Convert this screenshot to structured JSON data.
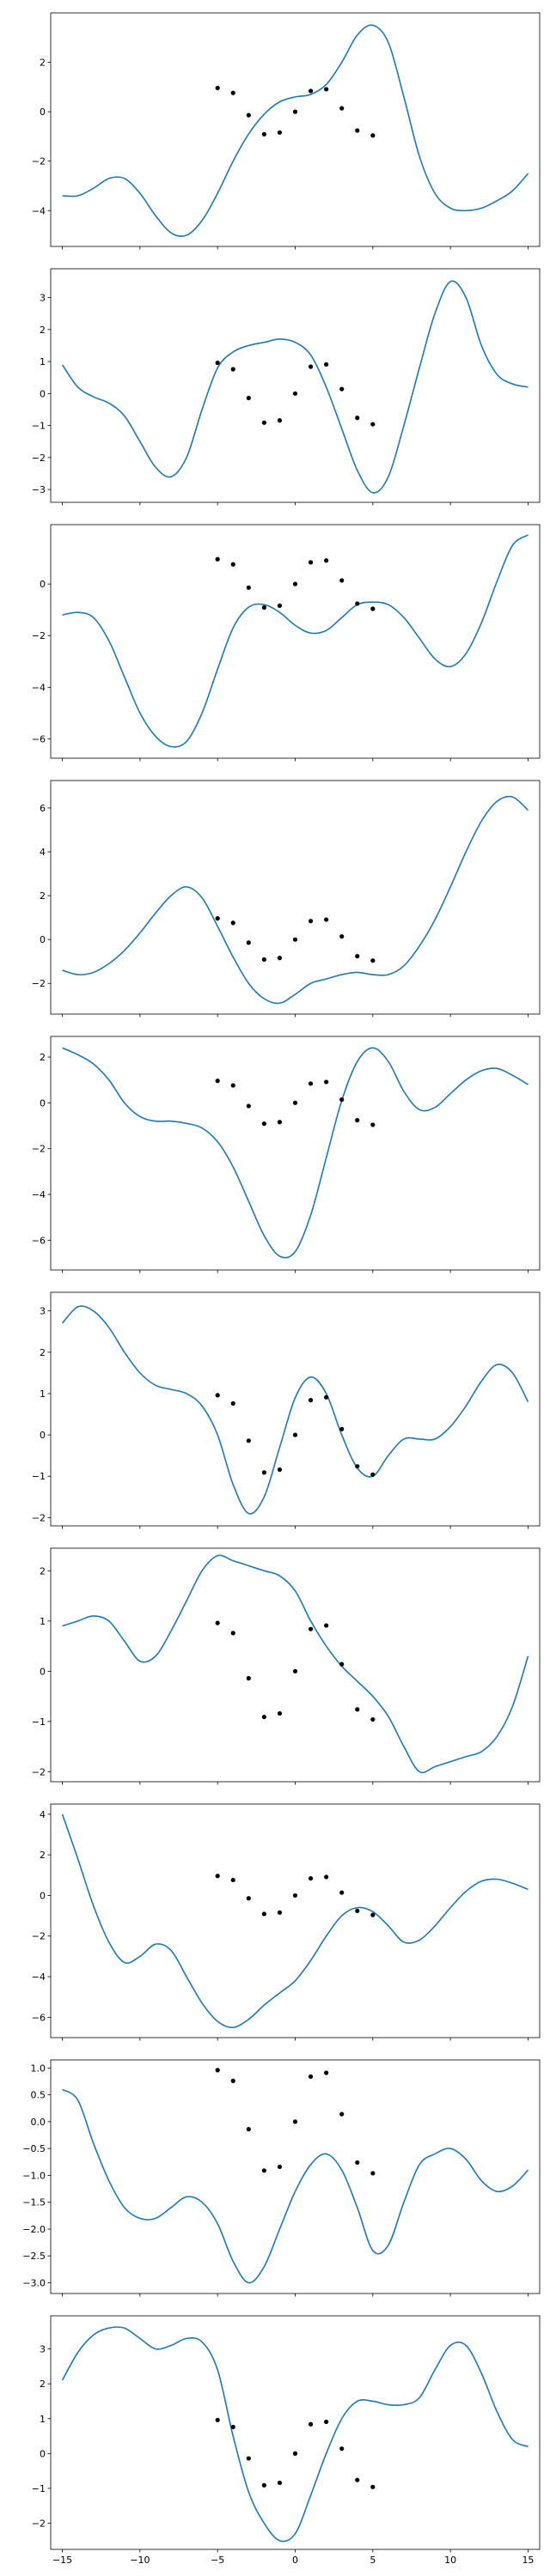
{
  "figure": {
    "x_ticks": [
      "−15",
      "−10",
      "−5",
      "0",
      "5",
      "10",
      "15"
    ],
    "line_color": "#1f77b4",
    "point_color": "#000000"
  },
  "chart_data": [
    {
      "type": "line",
      "xlim": [
        -15.75,
        15.75
      ],
      "ylim": [
        -5.45,
        4.0
      ],
      "yticks": [
        -4,
        -2,
        0,
        2
      ],
      "ytick_labels": [
        "−4",
        "−2",
        "0",
        "2"
      ],
      "series": [
        {
          "x": [
            -15,
            -14,
            -13,
            -12,
            -11,
            -10,
            -9,
            -8,
            -7,
            -6,
            -5,
            -4,
            -3,
            -2,
            -1,
            0,
            1,
            2,
            3,
            4,
            5,
            6,
            7,
            8,
            9,
            10,
            11,
            12,
            13,
            14,
            15
          ],
          "y": [
            -3.4,
            -3.4,
            -3.1,
            -2.7,
            -2.7,
            -3.3,
            -4.2,
            -4.9,
            -5.0,
            -4.4,
            -3.3,
            -2.0,
            -0.9,
            -0.1,
            0.4,
            0.6,
            0.7,
            1.1,
            2.0,
            3.1,
            3.5,
            2.8,
            0.6,
            -1.8,
            -3.3,
            -3.9,
            -4.0,
            -3.9,
            -3.6,
            -3.2,
            -2.5
          ]
        }
      ]
    },
    {
      "type": "line",
      "xlim": [
        -15.75,
        15.75
      ],
      "ylim": [
        -3.4,
        3.9
      ],
      "yticks": [
        -3,
        -2,
        -1,
        0,
        1,
        2,
        3
      ],
      "ytick_labels": [
        "−3",
        "−2",
        "−1",
        "0",
        "1",
        "2",
        "3"
      ],
      "series": [
        {
          "x": [
            -15,
            -14,
            -13,
            -12,
            -11,
            -10,
            -9,
            -8,
            -7,
            -6,
            -5,
            -4,
            -3,
            -2,
            -1,
            0,
            1,
            2,
            3,
            4,
            5,
            6,
            7,
            8,
            9,
            10,
            11,
            12,
            13,
            14,
            15
          ],
          "y": [
            0.9,
            0.2,
            -0.1,
            -0.3,
            -0.7,
            -1.5,
            -2.3,
            -2.6,
            -2.0,
            -0.5,
            0.8,
            1.3,
            1.5,
            1.6,
            1.7,
            1.6,
            1.2,
            0.2,
            -1.1,
            -2.4,
            -3.1,
            -2.6,
            -1.0,
            0.8,
            2.5,
            3.5,
            3.0,
            1.5,
            0.6,
            0.3,
            0.2
          ]
        }
      ]
    },
    {
      "type": "line",
      "xlim": [
        -15.75,
        15.75
      ],
      "ylim": [
        -6.75,
        2.3
      ],
      "yticks": [
        -6,
        -4,
        -2,
        0
      ],
      "ytick_labels": [
        "−6",
        "−4",
        "−2",
        "0"
      ],
      "series": [
        {
          "x": [
            -15,
            -14,
            -13,
            -12,
            -11,
            -10,
            -9,
            -8,
            -7,
            -6,
            -5,
            -4,
            -3,
            -2,
            -1,
            0,
            1,
            2,
            3,
            4,
            5,
            6,
            7,
            8,
            9,
            10,
            11,
            12,
            13,
            14,
            15
          ],
          "y": [
            -1.2,
            -1.1,
            -1.3,
            -2.2,
            -3.6,
            -5.0,
            -5.9,
            -6.3,
            -6.1,
            -5.0,
            -3.3,
            -1.7,
            -0.9,
            -0.8,
            -1.1,
            -1.6,
            -1.9,
            -1.8,
            -1.3,
            -0.8,
            -0.7,
            -0.8,
            -1.3,
            -2.1,
            -2.9,
            -3.2,
            -2.7,
            -1.5,
            0.1,
            1.5,
            1.9
          ]
        }
      ]
    },
    {
      "type": "line",
      "xlim": [
        -15.75,
        15.75
      ],
      "ylim": [
        -3.4,
        7.25
      ],
      "yticks": [
        -2,
        0,
        2,
        4,
        6
      ],
      "ytick_labels": [
        "−2",
        "0",
        "2",
        "4",
        "6"
      ],
      "series": [
        {
          "x": [
            -15,
            -14,
            -13,
            -12,
            -11,
            -10,
            -9,
            -8,
            -7,
            -6,
            -5,
            -4,
            -3,
            -2,
            -1,
            0,
            1,
            2,
            3,
            4,
            5,
            6,
            7,
            8,
            9,
            10,
            11,
            12,
            13,
            14,
            15
          ],
          "y": [
            -1.4,
            -1.6,
            -1.5,
            -1.1,
            -0.5,
            0.3,
            1.2,
            2.0,
            2.4,
            1.9,
            0.6,
            -0.8,
            -2.0,
            -2.7,
            -2.9,
            -2.5,
            -2.0,
            -1.8,
            -1.6,
            -1.5,
            -1.6,
            -1.6,
            -1.2,
            -0.3,
            0.9,
            2.4,
            4.0,
            5.4,
            6.3,
            6.5,
            5.9
          ]
        }
      ]
    },
    {
      "type": "line",
      "xlim": [
        -15.75,
        15.75
      ],
      "ylim": [
        -7.3,
        2.9
      ],
      "yticks": [
        -6,
        -4,
        -2,
        0,
        2
      ],
      "ytick_labels": [
        "−6",
        "−4",
        "−2",
        "0",
        "2"
      ],
      "series": [
        {
          "x": [
            -15,
            -14,
            -13,
            -12,
            -11,
            -10,
            -9,
            -8,
            -7,
            -6,
            -5,
            -4,
            -3,
            -2,
            -1,
            0,
            1,
            2,
            3,
            4,
            5,
            6,
            7,
            8,
            9,
            10,
            11,
            12,
            13,
            14,
            15
          ],
          "y": [
            2.4,
            2.1,
            1.7,
            1.0,
            0.0,
            -0.6,
            -0.8,
            -0.8,
            -0.9,
            -1.1,
            -1.7,
            -2.8,
            -4.3,
            -5.8,
            -6.7,
            -6.5,
            -4.9,
            -2.4,
            0.1,
            1.8,
            2.4,
            1.8,
            0.5,
            -0.3,
            -0.2,
            0.4,
            1.0,
            1.4,
            1.5,
            1.2,
            0.8
          ]
        }
      ]
    },
    {
      "type": "line",
      "xlim": [
        -15.75,
        15.75
      ],
      "ylim": [
        -2.2,
        3.45
      ],
      "yticks": [
        -2,
        -1,
        0,
        1,
        2,
        3
      ],
      "ytick_labels": [
        "−2",
        "−1",
        "0",
        "1",
        "2",
        "3"
      ],
      "series": [
        {
          "x": [
            -15,
            -14,
            -13,
            -12,
            -11,
            -10,
            -9,
            -8,
            -7,
            -6,
            -5,
            -4,
            -3,
            -2,
            -1,
            0,
            1,
            2,
            3,
            4,
            5,
            6,
            7,
            8,
            9,
            10,
            11,
            12,
            13,
            14,
            15
          ],
          "y": [
            2.7,
            3.1,
            3.0,
            2.6,
            2.0,
            1.5,
            1.2,
            1.1,
            1.0,
            0.7,
            0.0,
            -1.2,
            -1.9,
            -1.5,
            -0.3,
            0.9,
            1.4,
            1.0,
            0.0,
            -0.8,
            -1.0,
            -0.5,
            -0.1,
            -0.1,
            -0.1,
            0.2,
            0.7,
            1.3,
            1.7,
            1.5,
            0.8
          ]
        }
      ]
    },
    {
      "type": "line",
      "xlim": [
        -15.75,
        15.75
      ],
      "ylim": [
        -2.2,
        2.45
      ],
      "yticks": [
        -2,
        -1,
        0,
        1,
        2
      ],
      "ytick_labels": [
        "−2",
        "−1",
        "0",
        "1",
        "2"
      ],
      "series": [
        {
          "x": [
            -15,
            -14,
            -13,
            -12,
            -11,
            -10,
            -9,
            -8,
            -7,
            -6,
            -5,
            -4,
            -3,
            -2,
            -1,
            0,
            1,
            2,
            3,
            4,
            5,
            6,
            7,
            8,
            9,
            10,
            11,
            12,
            13,
            14,
            15
          ],
          "y": [
            0.9,
            1.0,
            1.1,
            1.0,
            0.6,
            0.2,
            0.3,
            0.8,
            1.4,
            2.0,
            2.3,
            2.2,
            2.1,
            2.0,
            1.9,
            1.6,
            1.0,
            0.5,
            0.1,
            -0.2,
            -0.5,
            -0.9,
            -1.5,
            -2.0,
            -1.9,
            -1.8,
            -1.7,
            -1.6,
            -1.3,
            -0.7,
            0.3
          ]
        }
      ]
    },
    {
      "type": "line",
      "xlim": [
        -15.75,
        15.75
      ],
      "ylim": [
        -7.0,
        4.5
      ],
      "yticks": [
        -6,
        -4,
        -2,
        0,
        2,
        4
      ],
      "ytick_labels": [
        "−6",
        "−4",
        "−2",
        "0",
        "2",
        "4"
      ],
      "series": [
        {
          "x": [
            -15,
            -14,
            -13,
            -12,
            -11,
            -10,
            -9,
            -8,
            -7,
            -6,
            -5,
            -4,
            -3,
            -2,
            -1,
            0,
            1,
            2,
            3,
            4,
            5,
            6,
            7,
            8,
            9,
            10,
            11,
            12,
            13,
            14,
            15
          ],
          "y": [
            4.0,
            1.8,
            -0.5,
            -2.3,
            -3.3,
            -3.0,
            -2.4,
            -2.7,
            -4.0,
            -5.3,
            -6.2,
            -6.5,
            -6.1,
            -5.4,
            -4.8,
            -4.2,
            -3.2,
            -2.0,
            -1.0,
            -0.6,
            -0.8,
            -1.5,
            -2.3,
            -2.2,
            -1.5,
            -0.6,
            0.2,
            0.7,
            0.8,
            0.6,
            0.3
          ]
        }
      ]
    },
    {
      "type": "line",
      "xlim": [
        -15.75,
        15.75
      ],
      "ylim": [
        -3.2,
        1.15
      ],
      "yticks": [
        -3.0,
        -2.5,
        -2.0,
        -1.5,
        -1.0,
        -0.5,
        0.0,
        0.5,
        1.0
      ],
      "ytick_labels": [
        "−3.0",
        "−2.5",
        "−2.0",
        "−1.5",
        "−1.0",
        "−0.5",
        "0.0",
        "0.5",
        "1.0"
      ],
      "series": [
        {
          "x": [
            -15,
            -14,
            -13,
            -12,
            -11,
            -10,
            -9,
            -8,
            -7,
            -6,
            -5,
            -4,
            -3,
            -2,
            -1,
            0,
            1,
            2,
            3,
            4,
            5,
            6,
            7,
            8,
            9,
            10,
            11,
            12,
            13,
            14,
            15
          ],
          "y": [
            0.6,
            0.4,
            -0.4,
            -1.1,
            -1.6,
            -1.8,
            -1.8,
            -1.6,
            -1.4,
            -1.5,
            -1.9,
            -2.6,
            -3.0,
            -2.7,
            -2.0,
            -1.3,
            -0.8,
            -0.6,
            -0.9,
            -1.6,
            -2.4,
            -2.3,
            -1.5,
            -0.8,
            -0.6,
            -0.5,
            -0.7,
            -1.1,
            -1.3,
            -1.2,
            -0.9
          ]
        }
      ]
    },
    {
      "type": "line",
      "xlim": [
        -15.75,
        15.75
      ],
      "ylim": [
        -2.75,
        3.95
      ],
      "yticks": [
        -2,
        -1,
        0,
        1,
        2,
        3
      ],
      "ytick_labels": [
        "−2",
        "−1",
        "0",
        "1",
        "2",
        "3"
      ],
      "series": [
        {
          "x": [
            -15,
            -14,
            -13,
            -12,
            -11,
            -10,
            -9,
            -8,
            -7,
            -6,
            -5,
            -4,
            -3,
            -2,
            -1,
            0,
            1,
            2,
            3,
            4,
            5,
            6,
            7,
            8,
            9,
            10,
            11,
            12,
            13,
            14,
            15
          ],
          "y": [
            2.1,
            2.9,
            3.4,
            3.6,
            3.6,
            3.3,
            3.0,
            3.1,
            3.3,
            3.2,
            2.4,
            0.5,
            -1.1,
            -2.0,
            -2.5,
            -2.3,
            -1.2,
            0.0,
            1.0,
            1.5,
            1.5,
            1.4,
            1.4,
            1.6,
            2.4,
            3.1,
            3.1,
            2.3,
            1.2,
            0.4,
            0.2
          ]
        }
      ]
    }
  ],
  "points": {
    "x": [
      -5.0,
      -4.0,
      -3.0,
      -2.0,
      -1.0,
      0.0,
      1.0,
      2.0,
      3.0,
      4.0,
      5.0
    ],
    "y": [
      0.96,
      0.76,
      -0.14,
      -0.91,
      -0.84,
      0.0,
      0.84,
      0.91,
      0.14,
      -0.76,
      -0.96
    ]
  }
}
